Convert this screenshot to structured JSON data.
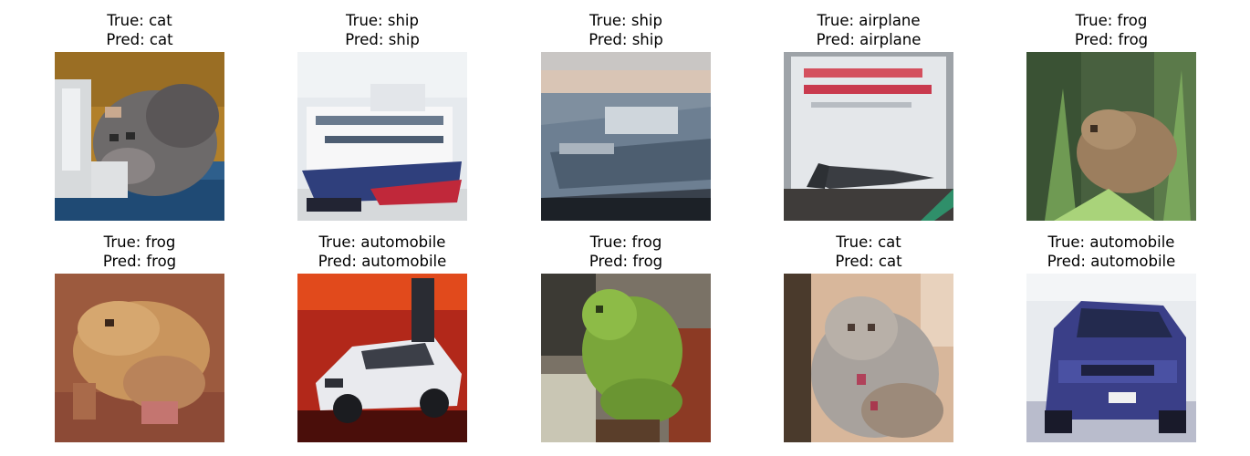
{
  "samples": [
    {
      "true_label": "True: cat",
      "pred_label": "Pred: cat",
      "scene": "cat-on-blue"
    },
    {
      "true_label": "True: ship",
      "pred_label": "Pred: ship",
      "scene": "ship-white-red"
    },
    {
      "true_label": "True: ship",
      "pred_label": "Pred: ship",
      "scene": "ship-grey"
    },
    {
      "true_label": "True: airplane",
      "pred_label": "Pred: airplane",
      "scene": "airplane-on-sign"
    },
    {
      "true_label": "True: frog",
      "pred_label": "Pred: frog",
      "scene": "frog-in-grass"
    },
    {
      "true_label": "True: frog",
      "pred_label": "Pred: frog",
      "scene": "frog-on-red-ground"
    },
    {
      "true_label": "True: automobile",
      "pred_label": "Pred: automobile",
      "scene": "white-car-red-background"
    },
    {
      "true_label": "True: frog",
      "pred_label": "Pred: frog",
      "scene": "green-frog"
    },
    {
      "true_label": "True: cat",
      "pred_label": "Pred: cat",
      "scene": "grey-cat"
    },
    {
      "true_label": "True: automobile",
      "pred_label": "Pred: automobile",
      "scene": "blue-car"
    }
  ]
}
